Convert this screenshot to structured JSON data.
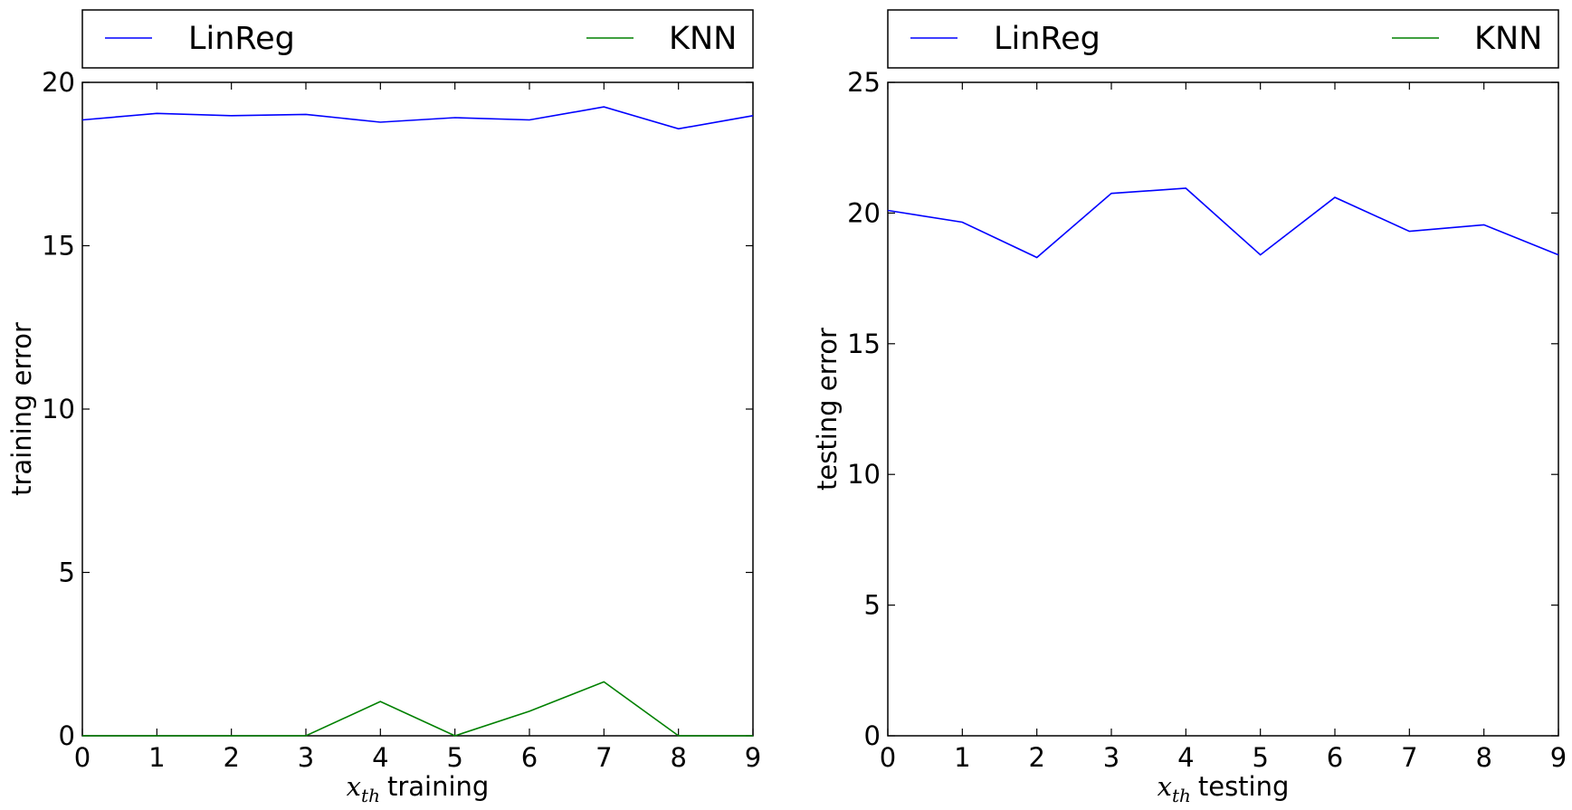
{
  "chart_data": [
    {
      "type": "line",
      "xlabel": {
        "math": "x",
        "sub": "th",
        "text": "training"
      },
      "ylabel": "training error",
      "xlim": [
        0,
        9
      ],
      "ylim": [
        0,
        20
      ],
      "xticks": [
        0,
        1,
        2,
        3,
        4,
        5,
        6,
        7,
        8,
        9
      ],
      "yticks": [
        0,
        5,
        10,
        15,
        20
      ],
      "legend_position": "top, outside plot (above axes)",
      "grid": false,
      "series": [
        {
          "name": "LinReg",
          "color": "#0000ff",
          "x": [
            0,
            1,
            2,
            3,
            4,
            5,
            6,
            7,
            8,
            9
          ],
          "values": [
            18.85,
            19.05,
            18.98,
            19.02,
            18.78,
            18.92,
            18.85,
            19.25,
            18.58,
            18.98
          ]
        },
        {
          "name": "KNN",
          "color": "#008000",
          "x": [
            0,
            1,
            2,
            3,
            4,
            5,
            6,
            7,
            8,
            9
          ],
          "values": [
            0,
            0,
            0,
            0,
            1.05,
            0,
            0.75,
            1.65,
            0,
            0
          ]
        }
      ]
    },
    {
      "type": "line",
      "xlabel": {
        "math": "x",
        "sub": "th",
        "text": "testing"
      },
      "ylabel": "testing error",
      "xlim": [
        0,
        9
      ],
      "ylim": [
        0,
        25
      ],
      "xticks": [
        0,
        1,
        2,
        3,
        4,
        5,
        6,
        7,
        8,
        9
      ],
      "yticks": [
        0,
        5,
        10,
        15,
        20,
        25
      ],
      "legend_position": "top, outside plot (above axes)",
      "grid": false,
      "series": [
        {
          "name": "LinReg",
          "color": "#0000ff",
          "x": [
            0,
            1,
            2,
            3,
            4,
            5,
            6,
            7,
            8,
            9
          ],
          "values": [
            20.1,
            19.65,
            18.3,
            20.75,
            20.95,
            18.4,
            20.6,
            19.3,
            19.55,
            18.4
          ]
        },
        {
          "name": "KNN",
          "color": "#008000",
          "x": [],
          "values": []
        }
      ]
    }
  ]
}
